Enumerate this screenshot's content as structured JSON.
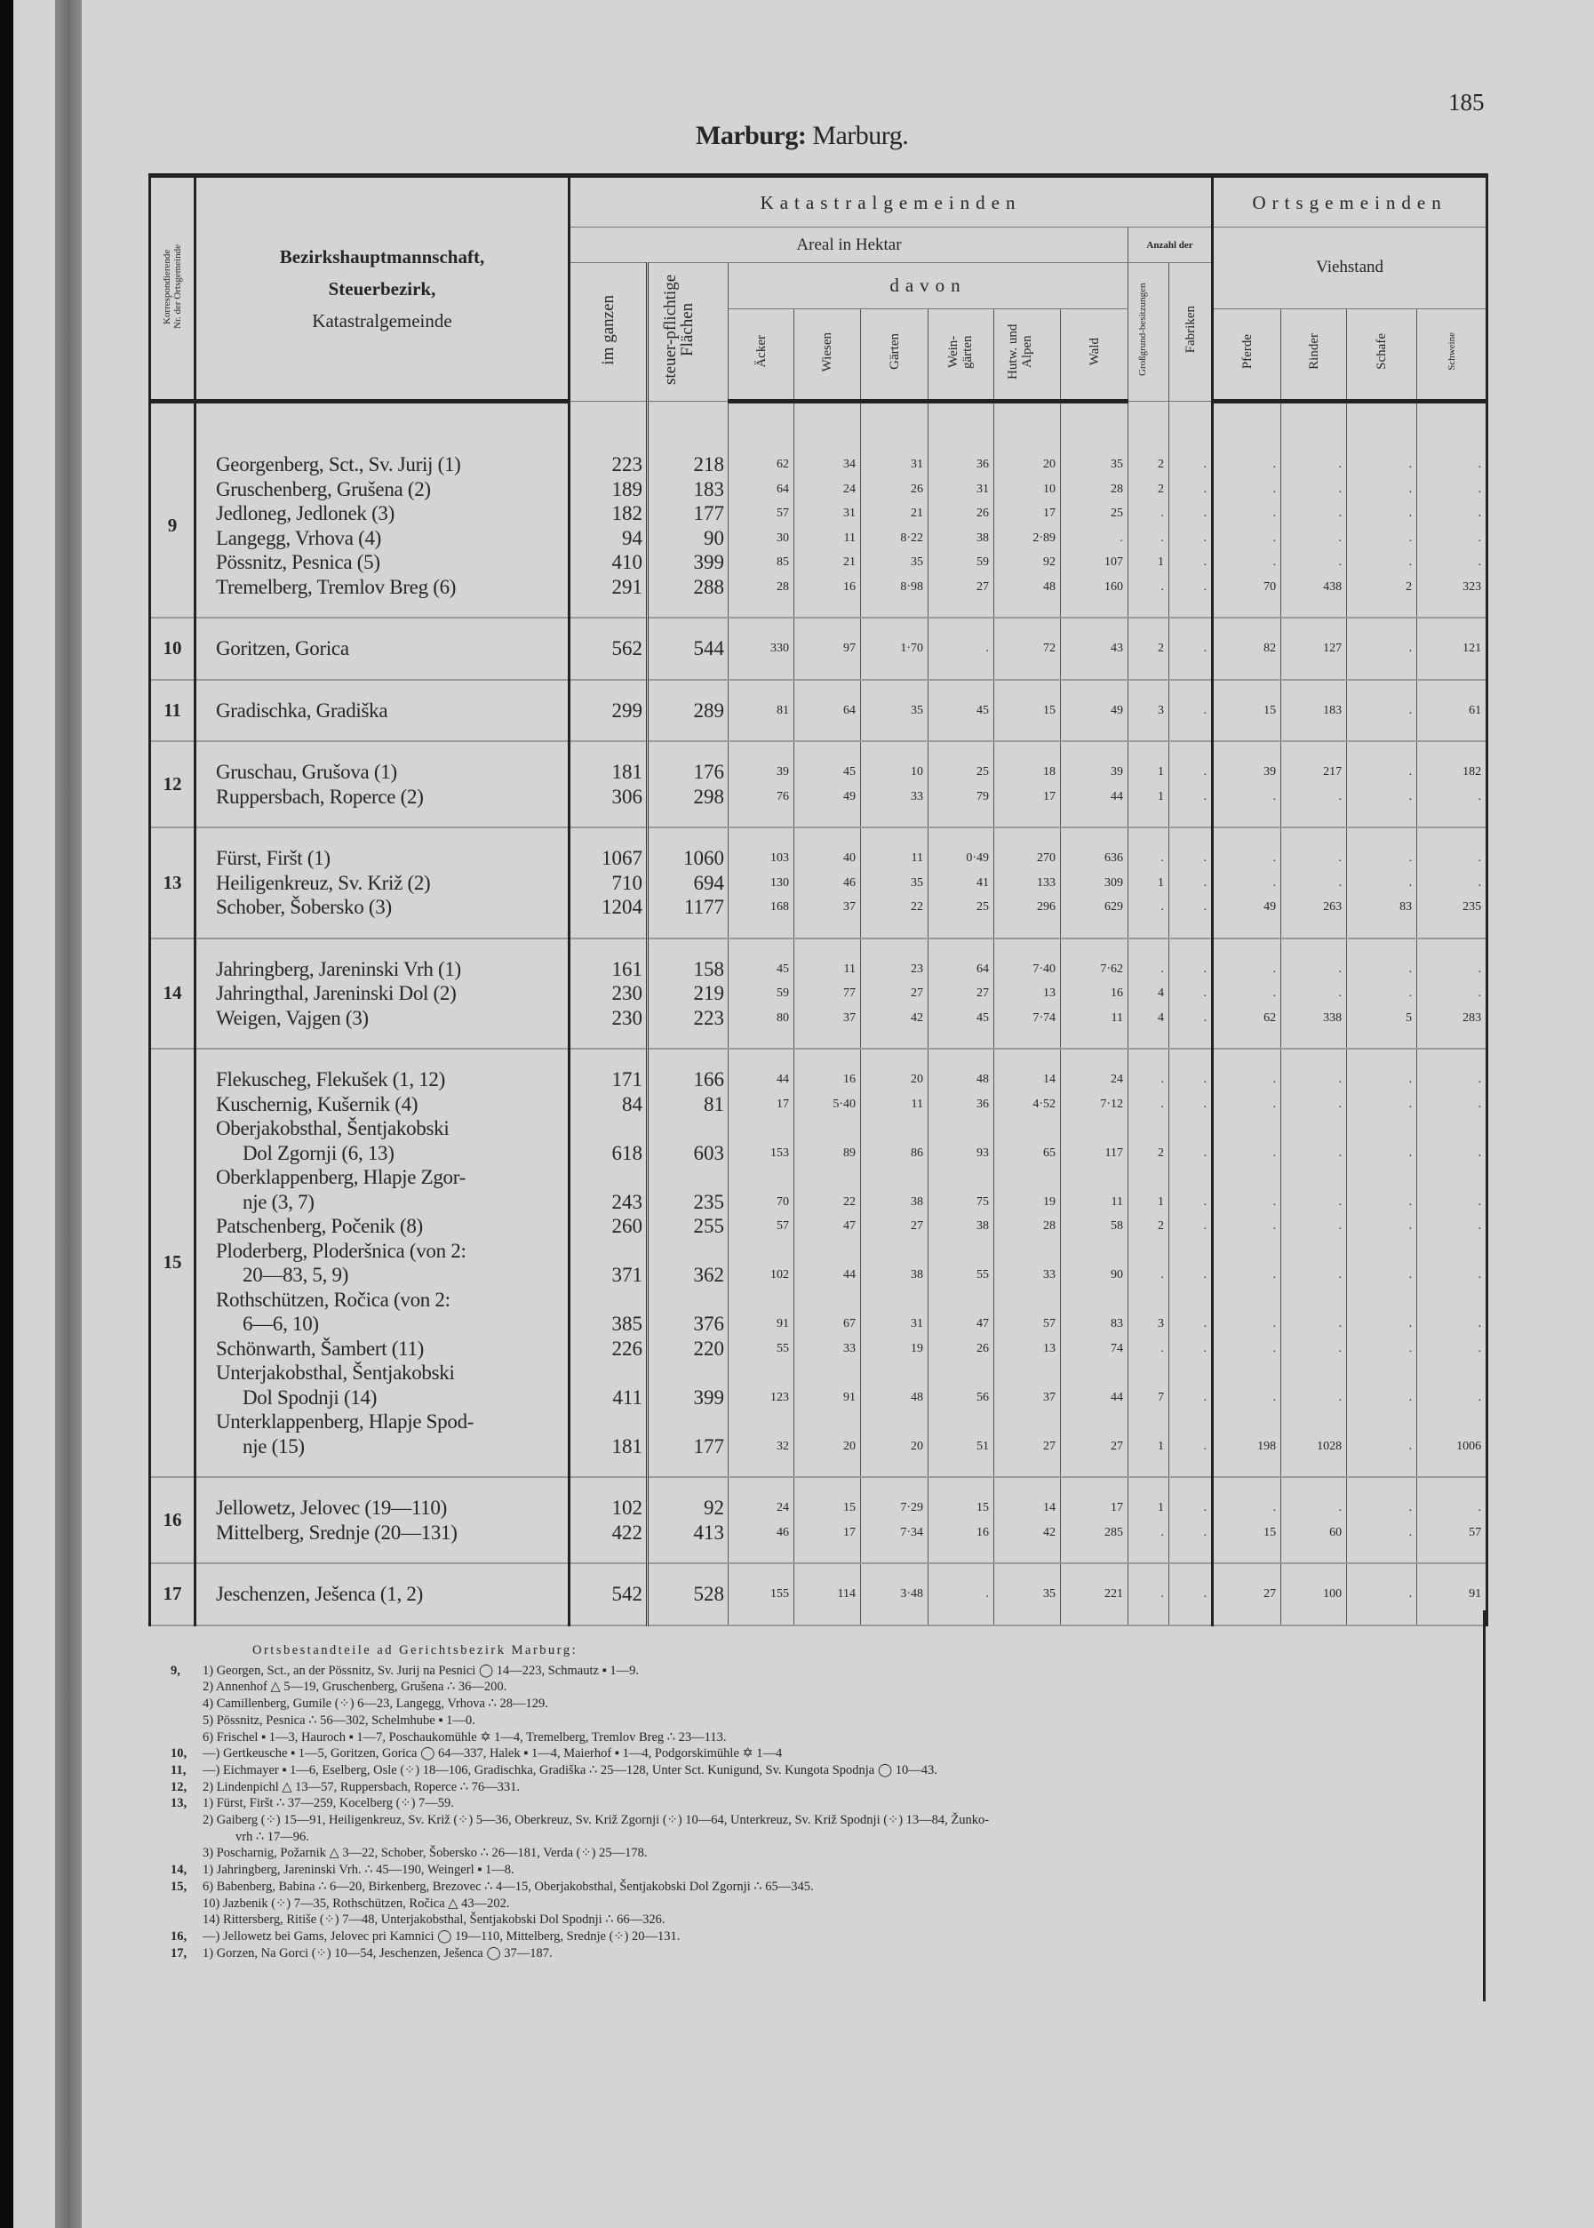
{
  "page": {
    "number": "185",
    "title_bold": "Marburg:",
    "title_regular": "Marburg."
  },
  "header": {
    "nr_line1": "Korrespondierende",
    "nr_line2": "Nr. der Ortsgemeinde",
    "name_line1": "Bezirkshauptmannschaft,",
    "name_line2": "Steuerbezirk,",
    "name_line3": "Katastralgemeinde",
    "katastral": "Katastralgemeinden",
    "orts": "Ortsgemeinden",
    "areal": "Areal in Hektar",
    "anzahl": "Anzahl der",
    "viehstand": "Viehstand",
    "davon": "davon",
    "columns": [
      "im ganzen",
      "steuer-pflichtige Flächen",
      "Äcker",
      "Wiesen",
      "Gärten",
      "Wein-gärten",
      "Hutw. und Alpen",
      "Wald",
      "Großgrund-besitzungen",
      "Fabriken",
      "Pferde",
      "Rinder",
      "Schafe",
      "Schweine"
    ]
  },
  "groups": [
    {
      "nr": "9",
      "rows": [
        {
          "name": [
            "Georgenberg, Sct., Sv. Jurij (1)"
          ],
          "values": [
            "223",
            "218",
            "62",
            "34",
            "31",
            "36",
            "20",
            "35",
            "2",
            ".",
            ".",
            ".",
            ".",
            "."
          ]
        },
        {
          "name": [
            "Gruschenberg, Grušena (2)"
          ],
          "values": [
            "189",
            "183",
            "64",
            "24",
            "26",
            "31",
            "10",
            "28",
            "2",
            ".",
            ".",
            ".",
            ".",
            "."
          ]
        },
        {
          "name": [
            "Jedloneg, Jedlonek (3)"
          ],
          "values": [
            "182",
            "177",
            "57",
            "31",
            "21",
            "26",
            "17",
            "25",
            ".",
            ".",
            ".",
            ".",
            ".",
            "."
          ]
        },
        {
          "name": [
            "Langegg, Vrhova (4)"
          ],
          "values": [
            "94",
            "90",
            "30",
            "11",
            "8·22",
            "38",
            "2·89",
            ".",
            ".",
            ".",
            ".",
            ".",
            ".",
            "."
          ]
        },
        {
          "name": [
            "Pössnitz, Pesnica (5)"
          ],
          "values": [
            "410",
            "399",
            "85",
            "21",
            "35",
            "59",
            "92",
            "107",
            "1",
            ".",
            ".",
            ".",
            ".",
            "."
          ]
        },
        {
          "name": [
            "Tremelberg, Tremlov Breg (6)"
          ],
          "values": [
            "291",
            "288",
            "28",
            "16",
            "8·98",
            "27",
            "48",
            "160",
            ".",
            ".",
            "70",
            "438",
            "2",
            "323"
          ]
        }
      ]
    },
    {
      "nr": "10",
      "rows": [
        {
          "name": [
            "Goritzen, Gorica"
          ],
          "values": [
            "562",
            "544",
            "330",
            "97",
            "1·70",
            ".",
            "72",
            "43",
            "2",
            ".",
            "82",
            "127",
            ".",
            "121"
          ]
        }
      ]
    },
    {
      "nr": "11",
      "rows": [
        {
          "name": [
            "Gradischka, Gradiška"
          ],
          "values": [
            "299",
            "289",
            "81",
            "64",
            "35",
            "45",
            "15",
            "49",
            "3",
            ".",
            "15",
            "183",
            ".",
            "61"
          ]
        }
      ]
    },
    {
      "nr": "12",
      "rows": [
        {
          "name": [
            "Gruschau, Grušova (1)"
          ],
          "values": [
            "181",
            "176",
            "39",
            "45",
            "10",
            "25",
            "18",
            "39",
            "1",
            ".",
            "39",
            "217",
            ".",
            "182"
          ]
        },
        {
          "name": [
            "Ruppersbach, Roperce (2)"
          ],
          "values": [
            "306",
            "298",
            "76",
            "49",
            "33",
            "79",
            "17",
            "44",
            "1",
            ".",
            ".",
            ".",
            ".",
            "."
          ]
        }
      ]
    },
    {
      "nr": "13",
      "rows": [
        {
          "name": [
            "Fürst, Firšt (1)"
          ],
          "values": [
            "1067",
            "1060",
            "103",
            "40",
            "11",
            "0·49",
            "270",
            "636",
            ".",
            ".",
            ".",
            ".",
            ".",
            "."
          ]
        },
        {
          "name": [
            "Heiligenkreuz, Sv. Križ (2)"
          ],
          "values": [
            "710",
            "694",
            "130",
            "46",
            "35",
            "41",
            "133",
            "309",
            "1",
            ".",
            ".",
            ".",
            ".",
            "."
          ]
        },
        {
          "name": [
            "Schober, Šobersko (3)"
          ],
          "values": [
            "1204",
            "1177",
            "168",
            "37",
            "22",
            "25",
            "296",
            "629",
            ".",
            ".",
            "49",
            "263",
            "83",
            "235"
          ]
        }
      ]
    },
    {
      "nr": "14",
      "rows": [
        {
          "name": [
            "Jahringberg, Jareninski Vrh (1)"
          ],
          "values": [
            "161",
            "158",
            "45",
            "11",
            "23",
            "64",
            "7·40",
            "7·62",
            ".",
            ".",
            ".",
            ".",
            ".",
            "."
          ]
        },
        {
          "name": [
            "Jahringthal, Jareninski Dol (2)"
          ],
          "values": [
            "230",
            "219",
            "59",
            "77",
            "27",
            "27",
            "13",
            "16",
            "4",
            ".",
            ".",
            ".",
            ".",
            "."
          ]
        },
        {
          "name": [
            "Weigen, Vajgen (3)"
          ],
          "values": [
            "230",
            "223",
            "80",
            "37",
            "42",
            "45",
            "7·74",
            "11",
            "4",
            ".",
            "62",
            "338",
            "5",
            "283"
          ]
        }
      ]
    },
    {
      "nr": "15",
      "rows": [
        {
          "name": [
            "Flekuscheg, Flekušek (1, 12)"
          ],
          "values": [
            "171",
            "166",
            "44",
            "16",
            "20",
            "48",
            "14",
            "24",
            ".",
            ".",
            ".",
            ".",
            ".",
            "."
          ]
        },
        {
          "name": [
            "Kuschernig, Kušernik (4)"
          ],
          "values": [
            "84",
            "81",
            "17",
            "5·40",
            "11",
            "36",
            "4·52",
            "7·12",
            ".",
            ".",
            ".",
            ".",
            ".",
            "."
          ]
        },
        {
          "name": [
            "Oberjakobsthal, Šentjakobski",
            "Dol Zgornji (6, 13)"
          ],
          "values": [
            "618",
            "603",
            "153",
            "89",
            "86",
            "93",
            "65",
            "117",
            "2",
            ".",
            ".",
            ".",
            ".",
            "."
          ]
        },
        {
          "name": [
            "Oberklappenberg, Hlapje Zgor-",
            "nje (3, 7)"
          ],
          "values": [
            "243",
            "235",
            "70",
            "22",
            "38",
            "75",
            "19",
            "11",
            "1",
            ".",
            ".",
            ".",
            ".",
            "."
          ]
        },
        {
          "name": [
            "Patschenberg, Počenik (8)"
          ],
          "values": [
            "260",
            "255",
            "57",
            "47",
            "27",
            "38",
            "28",
            "58",
            "2",
            ".",
            ".",
            ".",
            ".",
            "."
          ]
        },
        {
          "name": [
            "Ploderberg, Ploderšnica (von 2:",
            "20—83, 5, 9)"
          ],
          "values": [
            "371",
            "362",
            "102",
            "44",
            "38",
            "55",
            "33",
            "90",
            ".",
            ".",
            ".",
            ".",
            ".",
            "."
          ]
        },
        {
          "name": [
            "Rothschützen, Ročica (von 2:",
            "6—6, 10)"
          ],
          "values": [
            "385",
            "376",
            "91",
            "67",
            "31",
            "47",
            "57",
            "83",
            "3",
            ".",
            ".",
            ".",
            ".",
            "."
          ]
        },
        {
          "name": [
            "Schönwarth, Šambert (11)"
          ],
          "values": [
            "226",
            "220",
            "55",
            "33",
            "19",
            "26",
            "13",
            "74",
            ".",
            ".",
            ".",
            ".",
            ".",
            "."
          ]
        },
        {
          "name": [
            "Unterjakobsthal, Šentjakobski",
            "Dol Spodnji (14)"
          ],
          "values": [
            "411",
            "399",
            "123",
            "91",
            "48",
            "56",
            "37",
            "44",
            "7",
            ".",
            ".",
            ".",
            ".",
            "."
          ]
        },
        {
          "name": [
            "Unterklappenberg, Hlapje Spod-",
            "nje (15)"
          ],
          "values": [
            "181",
            "177",
            "32",
            "20",
            "20",
            "51",
            "27",
            "27",
            "1",
            ".",
            "198",
            "1028",
            ".",
            "1006"
          ]
        }
      ]
    },
    {
      "nr": "16",
      "rows": [
        {
          "name": [
            "Jellowetz, Jelovec (19—110)"
          ],
          "values": [
            "102",
            "92",
            "24",
            "15",
            "7·29",
            "15",
            "14",
            "17",
            "1",
            ".",
            ".",
            ".",
            ".",
            "."
          ]
        },
        {
          "name": [
            "Mittelberg, Srednje (20—131)"
          ],
          "values": [
            "422",
            "413",
            "46",
            "17",
            "7·34",
            "16",
            "42",
            "285",
            ".",
            ".",
            "15",
            "60",
            ".",
            "57"
          ]
        }
      ]
    },
    {
      "nr": "17",
      "rows": [
        {
          "name": [
            "Jeschenzen, Ješenca (1, 2)"
          ],
          "values": [
            "542",
            "528",
            "155",
            "114",
            "3·48",
            ".",
            "35",
            "221",
            ".",
            ".",
            "27",
            "100",
            ".",
            "91"
          ]
        }
      ]
    }
  ],
  "footnotes": {
    "title": "Ortsbestandteile ad Gerichtsbezirk Marburg:",
    "entries": [
      {
        "nr": "9,",
        "text": "1) Georgen, Sct., an der Pössnitz, Sv. Jurij na Pesnici ◯ 14—223, Schmautz ▪ 1—9."
      },
      {
        "nr": "",
        "text": "2) Annenhof △ 5—19, Gruschenberg, Grušena ∴ 36—200."
      },
      {
        "nr": "",
        "text": "4) Camillenberg, Gumile (⁘) 6—23, Langegg, Vrhova ∴ 28—129."
      },
      {
        "nr": "",
        "text": "5) Pössnitz, Pesnica ∴ 56—302, Schelmhube ▪ 1—0."
      },
      {
        "nr": "",
        "text": "6) Frischel ▪ 1—3, Hauroch ▪ 1—7, Poschaukomühle ✡ 1—4, Tremelberg, Tremlov Breg ∴ 23—113."
      },
      {
        "nr": "10,",
        "text": "—) Gertkeusche ▪ 1—5, Goritzen, Gorica ◯ 64—337, Halek ▪ 1—4, Maierhof ▪ 1—4, Podgorskimühle ✡ 1—4"
      },
      {
        "nr": "11,",
        "text": "—) Eichmayer ▪ 1—6, Eselberg, Osle (⁘) 18—106, Gradischka, Gradiška ∴ 25—128, Unter Sct. Kunigund, Sv. Kungota Spodnja ◯ 10—43."
      },
      {
        "nr": "12,",
        "text": "2) Lindenpichl △ 13—57, Ruppersbach, Roperce ∴ 76—331."
      },
      {
        "nr": "13,",
        "text": "1) Fürst, Firšt ∴ 37—259, Kocelberg (⁘) 7—59."
      },
      {
        "nr": "",
        "text": "2) Gaiberg (⁘) 15—91, Heiligenkreuz, Sv. Križ (⁘) 5—36, Oberkreuz, Sv. Križ Zgornji (⁘) 10—64, Unterkreuz, Sv. Križ Spodnji (⁘) 13—84, Žunko-"
      },
      {
        "nr": "",
        "text": "vrh ∴ 17—96."
      },
      {
        "nr": "",
        "text": "3) Poscharnig, Požarnik △ 3—22, Schober, Šobersko ∴ 26—181, Verda (⁘) 25—178."
      },
      {
        "nr": "14,",
        "text": "1) Jahringberg, Jareninski Vrh. ∴ 45—190, Weingerl ▪ 1—8."
      },
      {
        "nr": "15,",
        "text": "6) Babenberg, Babina ∴ 6—20, Birkenberg, Brezovec ∴ 4—15, Oberjakobsthal, Šentjakobski Dol Zgornji ∴ 65—345."
      },
      {
        "nr": "",
        "text": "10) Jazbenik (⁘) 7—35, Rothschützen, Ročica △ 43—202."
      },
      {
        "nr": "",
        "text": "14) Rittersberg, Ritiše (⁘) 7—48, Unterjakobsthal, Šentjakobski Dol Spodnji ∴ 66—326."
      },
      {
        "nr": "16,",
        "text": "—) Jellowetz bei Gams, Jelovec pri Kamnici ◯ 19—110, Mittelberg, Srednje (⁘) 20—131."
      },
      {
        "nr": "17,",
        "text": "1) Gorzen, Na Gorci (⁘) 10—54, Jeschenzen, Ješenca ◯ 37—187."
      }
    ]
  }
}
